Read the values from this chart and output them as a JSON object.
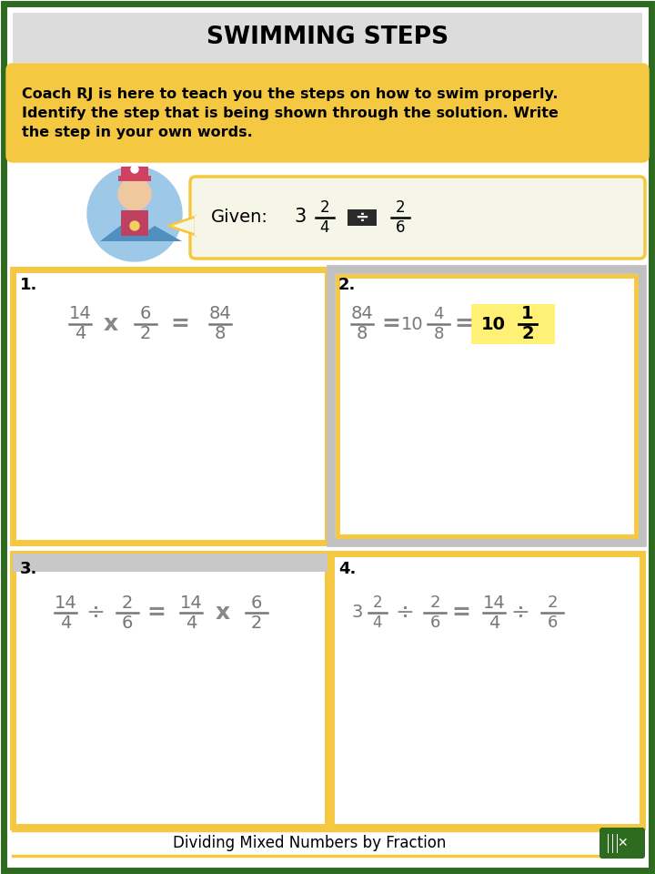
{
  "title": "SWIMMING STEPS",
  "bg_color": "#ffffff",
  "border_color": "#2d6b1f",
  "title_bg": "#dcdcdc",
  "yellow": "#f5c842",
  "yellow_fill": "#f5c842",
  "instruction_line1": "Coach RJ is here to teach you the steps on how to swim properly.",
  "instruction_line2": "Identify the step that is being shown through the solution. Write",
  "instruction_line3": "the step in your own words.",
  "footer_text": "Dividing Mixed Numbers by Fraction",
  "gray_border": "#c0c0c0",
  "dark_gray": "#888888",
  "med_gray": "#666666",
  "highlight_yellow": "#fff176",
  "given_bg": "#f5f5e8"
}
